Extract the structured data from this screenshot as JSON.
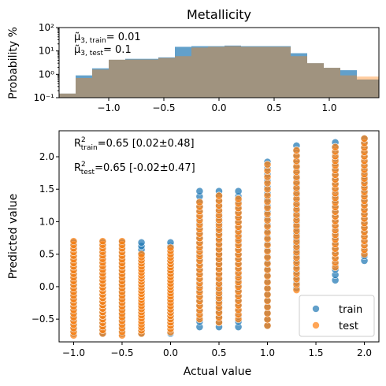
{
  "chart_data": [
    {
      "type": "bar",
      "subtype": "histogram",
      "title": "Metallicity",
      "ylabel": "Probability %",
      "xlabel": "",
      "yscale": "log",
      "ylim": [
        0.1,
        100
      ],
      "xlim": [
        -1.45,
        1.45
      ],
      "x_ticks": [
        -1.0,
        -0.5,
        0.0,
        0.5,
        1.0
      ],
      "x_tick_labels": [
        "−1.0",
        "−0.5",
        "0.0",
        "0.5",
        "1.0"
      ],
      "y_ticks": [
        0.1,
        1,
        10,
        100
      ],
      "y_tick_labels": [
        "10⁻¹",
        "10⁰",
        "10¹",
        "10²"
      ],
      "annotations": [
        {
          "label": "μ̃",
          "sub": "3, train",
          "text": "= 0.01"
        },
        {
          "label": "μ̃",
          "sub": "3, test",
          "text": "= 0.1"
        }
      ],
      "colors": {
        "train": "#1f77b4",
        "test": "#ff7f0e"
      },
      "series": [
        {
          "name": "train",
          "color": "#1f77b4",
          "bin_edges": [
            -1.45,
            -1.3,
            -1.15,
            -1.0,
            -0.85,
            -0.7,
            -0.55,
            -0.4,
            -0.25,
            -0.1,
            0.05,
            0.2,
            0.35,
            0.5,
            0.65,
            0.8,
            0.95,
            1.1,
            1.25,
            1.45
          ],
          "values": [
            0.15,
            0.9,
            1.8,
            4.2,
            4.6,
            4.6,
            5.3,
            15.0,
            16.0,
            16.0,
            17.0,
            16.0,
            16.0,
            16.0,
            8.0,
            3.0,
            1.9,
            1.5,
            0.6
          ]
        },
        {
          "name": "test",
          "color": "#ff7f0e",
          "bin_edges": [
            -1.45,
            -1.3,
            -1.15,
            -1.0,
            -0.85,
            -0.7,
            -0.55,
            -0.4,
            -0.25,
            -0.1,
            0.05,
            0.2,
            0.35,
            0.5,
            0.65,
            0.8,
            0.95,
            1.1,
            1.25,
            1.45
          ],
          "values": [
            0.15,
            0.7,
            1.6,
            4.2,
            4.3,
            4.3,
            5.0,
            6.0,
            14.0,
            15.0,
            16.0,
            15.0,
            15.0,
            15.0,
            6.0,
            3.0,
            1.9,
            0.9,
            0.8
          ]
        }
      ]
    },
    {
      "type": "scatter",
      "xlabel": "Actual value",
      "ylabel": "Predicted value",
      "xlim": [
        -1.15,
        2.15
      ],
      "ylim": [
        -0.85,
        2.4
      ],
      "x_ticks": [
        -1.0,
        -0.5,
        0.0,
        0.5,
        1.0,
        1.5,
        2.0
      ],
      "x_tick_labels": [
        "−1.0",
        "−0.5",
        "0.0",
        "0.5",
        "1.0",
        "1.5",
        "2.0"
      ],
      "y_ticks": [
        -0.5,
        0.0,
        0.5,
        1.0,
        1.5,
        2.0
      ],
      "y_tick_labels": [
        "−0.5",
        "0.0",
        "0.5",
        "1.0",
        "1.5",
        "2.0"
      ],
      "legend_position": "bottom-right",
      "annotations": [
        {
          "label": "R",
          "sup": "2",
          "sub": "train",
          "text": "=0.65 [0.02±0.48]"
        },
        {
          "label": "R",
          "sup": "2",
          "sub": "test",
          "text": "=0.65 [-0.02±0.47]"
        }
      ],
      "series": [
        {
          "name": "train",
          "color": "#1f77b4",
          "points": [
            {
              "x": -1.0,
              "y_min": -0.72,
              "y_max": 0.68
            },
            {
              "x": -0.7,
              "y_min": -0.72,
              "y_max": 0.68
            },
            {
              "x": -0.5,
              "y_min": -0.72,
              "y_max": 0.68
            },
            {
              "x": -0.3,
              "y_min": -0.72,
              "y_max": 0.68
            },
            {
              "x": 0.0,
              "y_min": -0.72,
              "y_max": 0.68
            },
            {
              "x": 0.3,
              "y_min": -0.62,
              "y_max": 1.47
            },
            {
              "x": 0.5,
              "y_min": -0.62,
              "y_max": 1.47
            },
            {
              "x": 0.7,
              "y_min": -0.62,
              "y_max": 1.47
            },
            {
              "x": 1.0,
              "y_min": -0.6,
              "y_max": 1.92
            },
            {
              "x": 1.3,
              "y_min": -0.02,
              "y_max": 2.17
            },
            {
              "x": 1.7,
              "y_min": 0.1,
              "y_max": 2.22
            },
            {
              "x": 2.0,
              "y_min": 0.4,
              "y_max": 2.28
            }
          ]
        },
        {
          "name": "test",
          "color": "#ff7f0e",
          "points": [
            {
              "x": -1.0,
              "y_min": -0.75,
              "y_max": 0.7
            },
            {
              "x": -0.7,
              "y_min": -0.72,
              "y_max": 0.7
            },
            {
              "x": -0.5,
              "y_min": -0.75,
              "y_max": 0.7
            },
            {
              "x": -0.3,
              "y_min": -0.72,
              "y_max": 0.5
            },
            {
              "x": 0.0,
              "y_min": -0.7,
              "y_max": 0.6
            },
            {
              "x": 0.3,
              "y_min": -0.5,
              "y_max": 1.3
            },
            {
              "x": 0.5,
              "y_min": -0.55,
              "y_max": 1.4
            },
            {
              "x": 0.7,
              "y_min": -0.5,
              "y_max": 1.35
            },
            {
              "x": 1.0,
              "y_min": -0.6,
              "y_max": 1.88
            },
            {
              "x": 1.3,
              "y_min": -0.05,
              "y_max": 2.1
            },
            {
              "x": 1.7,
              "y_min": 0.3,
              "y_max": 2.15
            },
            {
              "x": 2.0,
              "y_min": 0.5,
              "y_max": 2.28
            }
          ]
        }
      ]
    }
  ]
}
